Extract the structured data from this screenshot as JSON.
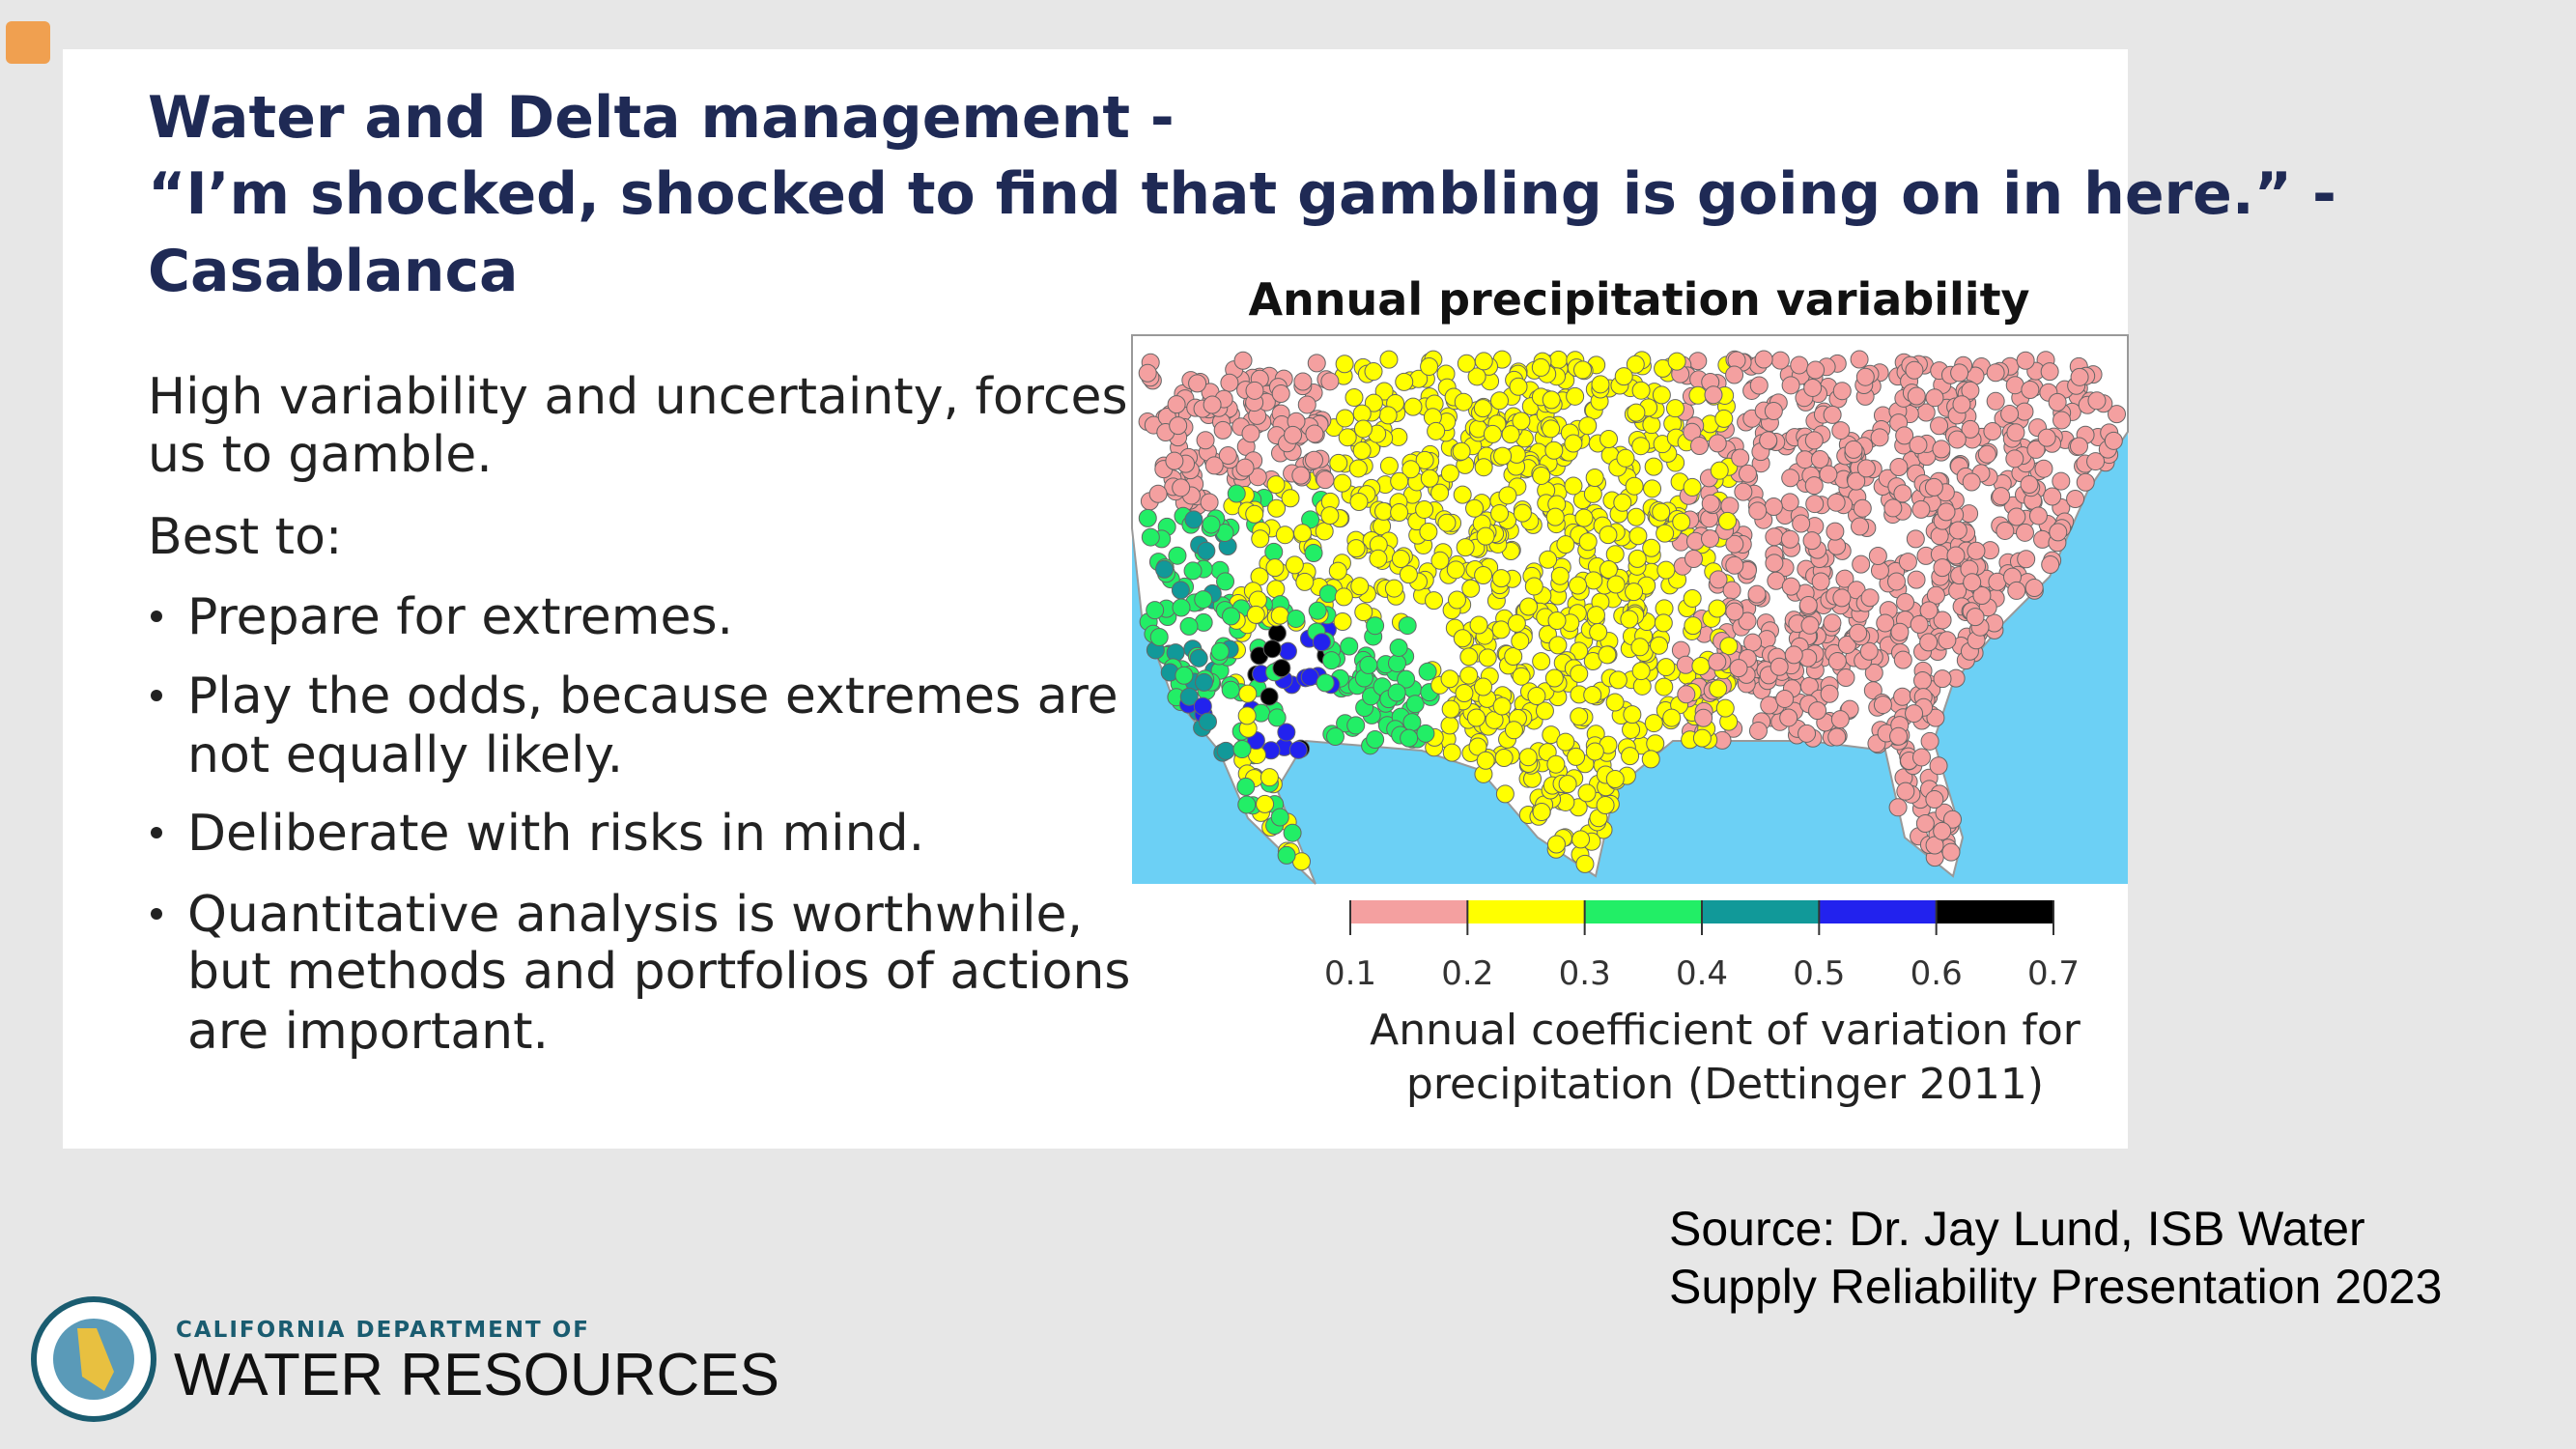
{
  "header": {
    "title_lines": [
      "Water and Delta management -",
      "“I’m shocked, shocked to find that gambling is going on in here.” -",
      "Casablanca"
    ]
  },
  "body": {
    "intro_lines": [
      "High variability and uncertainty, forces",
      "us to gamble."
    ],
    "lead": "Best to:",
    "bullets": [
      [
        "Prepare for extremes."
      ],
      [
        "Play the odds, because extremes are",
        "not equally likely."
      ],
      [
        "Deliberate with risks in mind."
      ],
      [
        "Quantitative analysis is worthwhile,",
        "but methods and portfolios of actions",
        "are important."
      ]
    ]
  },
  "figure": {
    "title": "Annual precipitation variability",
    "colorbar": {
      "ticks": [
        "0.1",
        "0.2",
        "0.3",
        "0.4",
        "0.5",
        "0.6",
        "0.7"
      ],
      "colors": [
        "#f4a0a0",
        "#ffff00",
        "#22ee66",
        "#119999",
        "#2222ee",
        "#000000"
      ]
    },
    "caption_lines": [
      "Annual coefficient of variation for",
      "precipitation (Dettinger 2011)"
    ]
  },
  "source_lines": [
    "Source: Dr. Jay Lund, ISB Water",
    "Supply Reliability Presentation 2023"
  ],
  "logo": {
    "line1": "CALIFORNIA DEPARTMENT OF",
    "line2": "WATER RESOURCES"
  }
}
